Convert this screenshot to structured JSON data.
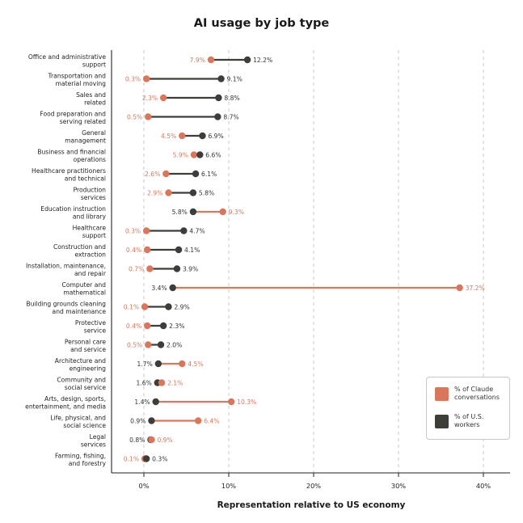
{
  "chart_data": {
    "type": "dumbbell",
    "title": "AI usage by job type",
    "xlabel": "Representation relative to US economy",
    "ylabel": "",
    "xlim": [
      -3.8,
      43.5
    ],
    "x_ticks": [
      0,
      10,
      20,
      30,
      40
    ],
    "x_tick_labels": [
      "0%",
      "10%",
      "20%",
      "30%",
      "40%"
    ],
    "grid": "vertical dashed",
    "legend_position": "bottom-right",
    "colors": {
      "claude": "#d9775c",
      "workers": "#3d3d3a"
    },
    "series": [
      {
        "key": "claude",
        "name": "% of Claude conversations"
      },
      {
        "key": "workers",
        "name": "% of U.S. workers"
      }
    ],
    "categories": [
      [
        "Office and administrative",
        "support"
      ],
      [
        "Transportation and",
        "material moving"
      ],
      [
        "Sales and",
        "related"
      ],
      [
        "Food preparation and",
        "serving related"
      ],
      [
        "General",
        "management"
      ],
      [
        "Business and financial",
        "operations"
      ],
      [
        "Healthcare practitioners",
        "and technical"
      ],
      [
        "Production",
        "services"
      ],
      [
        "Education instruction",
        "and library"
      ],
      [
        "Healthcare",
        "support"
      ],
      [
        "Construction and",
        "extraction"
      ],
      [
        "Installation, maintenance,",
        "and repair"
      ],
      [
        "Computer and",
        "mathematical"
      ],
      [
        "Building grounds cleaning",
        "and maintenance"
      ],
      [
        "Protective",
        "service"
      ],
      [
        "Personal care",
        "and service"
      ],
      [
        "Architecture and",
        "engineering"
      ],
      [
        "Community and",
        "social service"
      ],
      [
        "Arts, design, sports,",
        "entertainment, and media"
      ],
      [
        "Life, physical, and",
        "social science"
      ],
      [
        "Legal",
        "services"
      ],
      [
        "Farming, fishing,",
        "and forestry"
      ]
    ],
    "claude_values": [
      7.9,
      0.3,
      2.3,
      0.5,
      4.5,
      5.9,
      2.6,
      2.9,
      9.3,
      0.3,
      0.4,
      0.7,
      37.2,
      0.1,
      0.4,
      0.5,
      4.5,
      2.1,
      10.3,
      6.4,
      0.9,
      0.1
    ],
    "worker_values": [
      12.2,
      9.1,
      8.8,
      8.7,
      6.9,
      6.6,
      6.1,
      5.8,
      5.8,
      4.7,
      4.1,
      3.9,
      3.4,
      2.9,
      2.3,
      2.0,
      1.7,
      1.6,
      1.4,
      0.9,
      0.8,
      0.3
    ],
    "claude_labels": [
      "7.9%",
      "0.3%",
      "2.3%",
      "0.5%",
      "4.5%",
      "5.9%",
      "2.6%",
      "2.9%",
      "9.3%",
      "0.3%",
      "0.4%",
      "0.7%",
      "37.2%",
      "0.1%",
      "0.4%",
      "0.5%",
      "4.5%",
      "2.1%",
      "10.3%",
      "6.4%",
      "0.9%",
      "0.1%"
    ],
    "worker_labels": [
      "12.2%",
      "9.1%",
      "8.8%",
      "8.7%",
      "6.9%",
      "6.6%",
      "6.1%",
      "5.8%",
      "5.8%",
      "4.7%",
      "4.1%",
      "3.9%",
      "3.4%",
      "2.9%",
      "2.3%",
      "2.0%",
      "1.7%",
      "1.6%",
      "1.4%",
      "0.9%",
      "0.8%",
      "0.3%"
    ]
  },
  "legend": {
    "claude_label": "% of Claude conversations",
    "workers_label": "% of U.S. workers"
  }
}
